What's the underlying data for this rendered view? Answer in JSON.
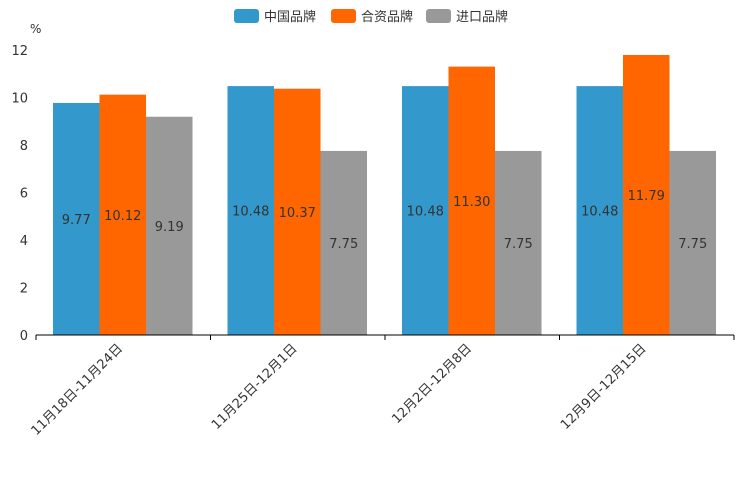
{
  "chart_data": {
    "type": "bar",
    "title": "",
    "xlabel": "",
    "ylabel": "%",
    "ylim": [
      0,
      12
    ],
    "yticks": [
      0,
      2,
      4,
      6,
      8,
      10,
      12
    ],
    "grid": false,
    "legend_position": "top-center",
    "categories": [
      "11月18日-11月24日",
      "11月25日-12月1日",
      "12月2日-12月8日",
      "12月9日-12月15日"
    ],
    "series": [
      {
        "name": "中国品牌",
        "color": "#3399cc",
        "values": [
          9.77,
          10.48,
          10.48,
          10.48
        ]
      },
      {
        "name": "合资品牌",
        "color": "#ff6600",
        "values": [
          10.12,
          10.37,
          11.3,
          11.79
        ]
      },
      {
        "name": "进口品牌",
        "color": "#999999",
        "values": [
          9.19,
          7.75,
          7.75,
          7.75
        ]
      }
    ]
  }
}
